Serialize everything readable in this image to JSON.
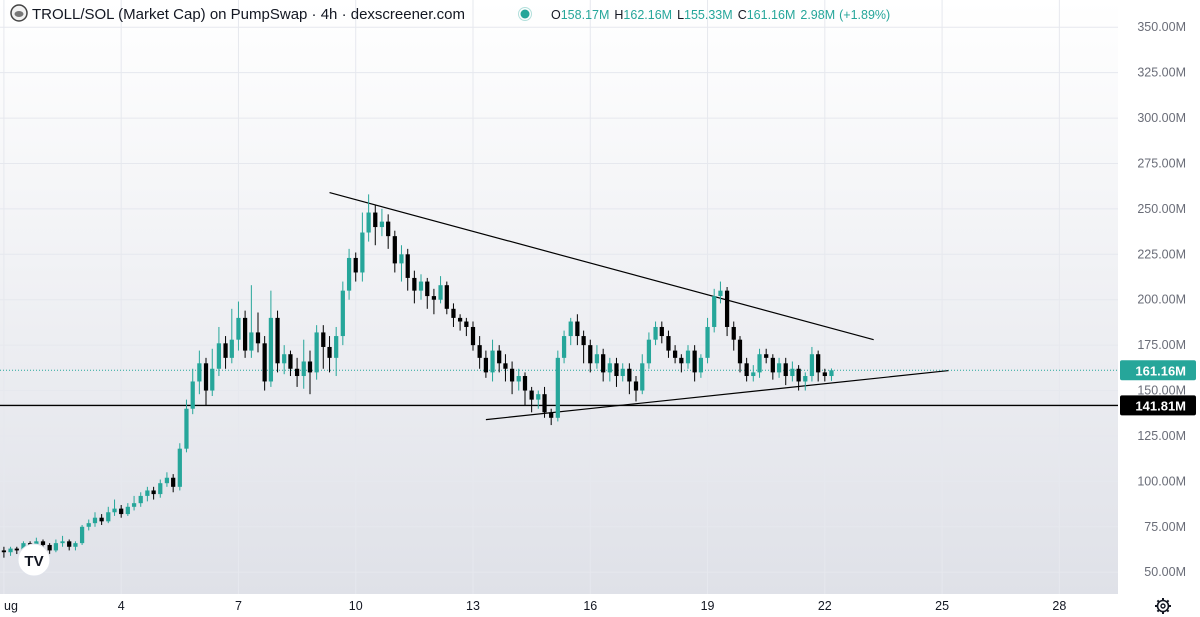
{
  "header": {
    "symbol_title": "TROLL/SOL (Market Cap) on PumpSwap · 4h · dexscreener.com",
    "open_label": "O",
    "open": "158.17M",
    "high_label": "H",
    "high": "162.16M",
    "low_label": "L",
    "low": "155.33M",
    "close_label": "C",
    "close": "161.16M",
    "volume": "2.98M",
    "change": "(+1.89%)",
    "status_color": "#26a69a"
  },
  "watermark": "TV",
  "colors": {
    "up": "#26a69a",
    "down": "#000000",
    "grid": "#e6e8ee",
    "bg_top": "#ffffff",
    "bg_bottom": "#dfe1e8",
    "line": "#000000"
  },
  "chart_data": {
    "type": "candlestick",
    "title": "TROLL/SOL (Market Cap)",
    "timeframe": "4h",
    "x_ticks": [
      "ug",
      "4",
      "7",
      "10",
      "13",
      "16",
      "19",
      "22",
      "25",
      "28"
    ],
    "x_tick_days": [
      1,
      4,
      7,
      10,
      13,
      16,
      19,
      22,
      25,
      28
    ],
    "y_ticks": [
      50,
      75,
      100,
      125,
      150,
      175,
      200,
      225,
      250,
      275,
      300,
      325,
      350
    ],
    "y_tick_labels": [
      "50.00M",
      "75.00M",
      "100.00M",
      "125.00M",
      "150.00M",
      "175.00M",
      "200.00M",
      "225.00M",
      "250.00M",
      "275.00M",
      "300.00M",
      "325.00M",
      "350.00M"
    ],
    "y_unit": "M",
    "ylim": [
      38,
      365
    ],
    "xlim_days": [
      0.9,
      29.5
    ],
    "current_price": 161.16,
    "current_price_label": "161.16M",
    "horizontal_level": 141.81,
    "horizontal_level_label": "141.81M",
    "trendlines": [
      {
        "name": "resistance",
        "from": [
          9.33,
          259
        ],
        "to": [
          23.25,
          178
        ]
      },
      {
        "name": "support",
        "from": [
          13.33,
          134
        ],
        "to": [
          25.17,
          161
        ]
      }
    ],
    "candles": [
      [
        1.0,
        62,
        61,
        64,
        58
      ],
      [
        1.17,
        61,
        63,
        64,
        59
      ],
      [
        1.33,
        63,
        62,
        64,
        60
      ],
      [
        1.5,
        62,
        66,
        67,
        61
      ],
      [
        1.67,
        66,
        64,
        67,
        62
      ],
      [
        1.83,
        64,
        67,
        69,
        63
      ],
      [
        2.0,
        67,
        65,
        68,
        64
      ],
      [
        2.17,
        65,
        62,
        66,
        60
      ],
      [
        2.33,
        62,
        66,
        68,
        61
      ],
      [
        2.5,
        66,
        67,
        70,
        64
      ],
      [
        2.67,
        67,
        64,
        68,
        62
      ],
      [
        2.83,
        64,
        66,
        67,
        62
      ],
      [
        3.0,
        66,
        75,
        76,
        65
      ],
      [
        3.17,
        75,
        77,
        79,
        73
      ],
      [
        3.33,
        77,
        80,
        83,
        75
      ],
      [
        3.5,
        80,
        78,
        82,
        76
      ],
      [
        3.67,
        78,
        83,
        86,
        77
      ],
      [
        3.83,
        83,
        85,
        90,
        81
      ],
      [
        4.0,
        85,
        82,
        87,
        80
      ],
      [
        4.17,
        82,
        86,
        88,
        81
      ],
      [
        4.33,
        86,
        88,
        92,
        84
      ],
      [
        4.5,
        88,
        92,
        94,
        86
      ],
      [
        4.67,
        92,
        95,
        97,
        89
      ],
      [
        4.83,
        95,
        93,
        97,
        90
      ],
      [
        5.0,
        93,
        99,
        101,
        91
      ],
      [
        5.17,
        99,
        102,
        105,
        97
      ],
      [
        5.33,
        102,
        97,
        104,
        94
      ],
      [
        5.5,
        97,
        118,
        121,
        95
      ],
      [
        5.67,
        118,
        140,
        145,
        116
      ],
      [
        5.83,
        140,
        155,
        162,
        137
      ],
      [
        6.0,
        155,
        165,
        172,
        148
      ],
      [
        6.17,
        165,
        150,
        168,
        142
      ],
      [
        6.33,
        150,
        162,
        173,
        147
      ],
      [
        6.5,
        162,
        176,
        185,
        158
      ],
      [
        6.67,
        176,
        168,
        180,
        162
      ],
      [
        6.83,
        168,
        178,
        195,
        165
      ],
      [
        7.0,
        178,
        190,
        199,
        172
      ],
      [
        7.17,
        190,
        172,
        194,
        168
      ],
      [
        7.33,
        172,
        182,
        208,
        168
      ],
      [
        7.5,
        182,
        176,
        193,
        171
      ],
      [
        7.67,
        176,
        155,
        180,
        150
      ],
      [
        7.83,
        155,
        190,
        205,
        152
      ],
      [
        8.0,
        190,
        165,
        194,
        160
      ],
      [
        8.17,
        165,
        170,
        175,
        159
      ],
      [
        8.33,
        170,
        162,
        172,
        158
      ],
      [
        8.5,
        162,
        158,
        168,
        152
      ],
      [
        8.67,
        158,
        166,
        178,
        151
      ],
      [
        8.83,
        166,
        160,
        172,
        148
      ],
      [
        9.0,
        160,
        182,
        186,
        156
      ],
      [
        9.17,
        182,
        174,
        186,
        162
      ],
      [
        9.33,
        174,
        168,
        180,
        160
      ],
      [
        9.5,
        168,
        180,
        185,
        158
      ],
      [
        9.67,
        180,
        205,
        210,
        175
      ],
      [
        9.83,
        205,
        223,
        228,
        200
      ],
      [
        10.0,
        223,
        215,
        226,
        210
      ],
      [
        10.17,
        215,
        237,
        248,
        210
      ],
      [
        10.33,
        237,
        248,
        258,
        232
      ],
      [
        10.5,
        248,
        240,
        252,
        230
      ],
      [
        10.67,
        240,
        243,
        250,
        235
      ],
      [
        10.83,
        243,
        235,
        247,
        228
      ],
      [
        11.0,
        235,
        220,
        238,
        215
      ],
      [
        11.17,
        220,
        225,
        230,
        210
      ],
      [
        11.33,
        225,
        212,
        228,
        205
      ],
      [
        11.5,
        212,
        205,
        216,
        198
      ],
      [
        11.67,
        205,
        210,
        214,
        200
      ],
      [
        11.83,
        210,
        202,
        212,
        195
      ],
      [
        12.0,
        202,
        200,
        206,
        192
      ],
      [
        12.17,
        200,
        208,
        213,
        198
      ],
      [
        12.33,
        208,
        195,
        210,
        192
      ],
      [
        12.5,
        195,
        190,
        198,
        185
      ],
      [
        12.67,
        190,
        188,
        192,
        183
      ],
      [
        12.83,
        188,
        185,
        190,
        180
      ],
      [
        13.0,
        185,
        175,
        188,
        172
      ],
      [
        13.17,
        175,
        168,
        180,
        162
      ],
      [
        13.33,
        168,
        160,
        172,
        157
      ],
      [
        13.5,
        160,
        172,
        178,
        155
      ],
      [
        13.67,
        172,
        165,
        175,
        160
      ],
      [
        13.83,
        165,
        162,
        170,
        155
      ],
      [
        14.0,
        162,
        155,
        166,
        148
      ],
      [
        14.17,
        155,
        158,
        162,
        150
      ],
      [
        14.33,
        158,
        150,
        160,
        142
      ],
      [
        14.5,
        150,
        145,
        152,
        138
      ],
      [
        14.67,
        145,
        148,
        150,
        140
      ],
      [
        14.83,
        148,
        138,
        152,
        135
      ],
      [
        15.0,
        138,
        135,
        140,
        131
      ],
      [
        15.17,
        135,
        168,
        172,
        133
      ],
      [
        15.33,
        168,
        180,
        183,
        165
      ],
      [
        15.5,
        180,
        188,
        190,
        175
      ],
      [
        15.67,
        188,
        180,
        192,
        175
      ],
      [
        15.83,
        180,
        175,
        183,
        165
      ],
      [
        16.0,
        175,
        165,
        178,
        160
      ],
      [
        16.17,
        165,
        170,
        175,
        162
      ],
      [
        16.33,
        170,
        160,
        173,
        155
      ],
      [
        16.5,
        160,
        165,
        168,
        155
      ],
      [
        16.67,
        165,
        158,
        168,
        152
      ],
      [
        16.83,
        158,
        162,
        165,
        155
      ],
      [
        17.0,
        162,
        155,
        165,
        148
      ],
      [
        17.17,
        155,
        150,
        158,
        144
      ],
      [
        17.33,
        150,
        165,
        170,
        148
      ],
      [
        17.5,
        165,
        178,
        182,
        162
      ],
      [
        17.67,
        178,
        185,
        188,
        175
      ],
      [
        17.83,
        185,
        180,
        188,
        176
      ],
      [
        18.0,
        180,
        172,
        183,
        168
      ],
      [
        18.17,
        172,
        168,
        175,
        165
      ],
      [
        18.33,
        168,
        165,
        170,
        160
      ],
      [
        18.5,
        165,
        172,
        175,
        162
      ],
      [
        18.67,
        172,
        160,
        175,
        155
      ],
      [
        18.83,
        160,
        168,
        170,
        157
      ],
      [
        19.0,
        168,
        185,
        190,
        165
      ],
      [
        19.17,
        185,
        202,
        206,
        182
      ],
      [
        19.33,
        202,
        205,
        210,
        198
      ],
      [
        19.5,
        205,
        185,
        207,
        180
      ],
      [
        19.67,
        185,
        178,
        188,
        172
      ],
      [
        19.83,
        178,
        165,
        180,
        160
      ],
      [
        20.0,
        165,
        158,
        168,
        155
      ],
      [
        20.17,
        158,
        160,
        164,
        155
      ],
      [
        20.33,
        160,
        170,
        173,
        157
      ],
      [
        20.5,
        170,
        168,
        173,
        165
      ],
      [
        20.67,
        168,
        160,
        170,
        156
      ],
      [
        20.83,
        160,
        165,
        168,
        157
      ],
      [
        21.0,
        165,
        158,
        168,
        153
      ],
      [
        21.17,
        158,
        162,
        166,
        155
      ],
      [
        21.33,
        162,
        155,
        164,
        150
      ],
      [
        21.5,
        155,
        158,
        160,
        150
      ],
      [
        21.67,
        158,
        170,
        174,
        155
      ],
      [
        21.83,
        170,
        160,
        172,
        155
      ],
      [
        22.0,
        160,
        158,
        162,
        155
      ],
      [
        22.17,
        158,
        161.16,
        162.16,
        155.33
      ]
    ]
  },
  "settings_icon": "gear-icon"
}
